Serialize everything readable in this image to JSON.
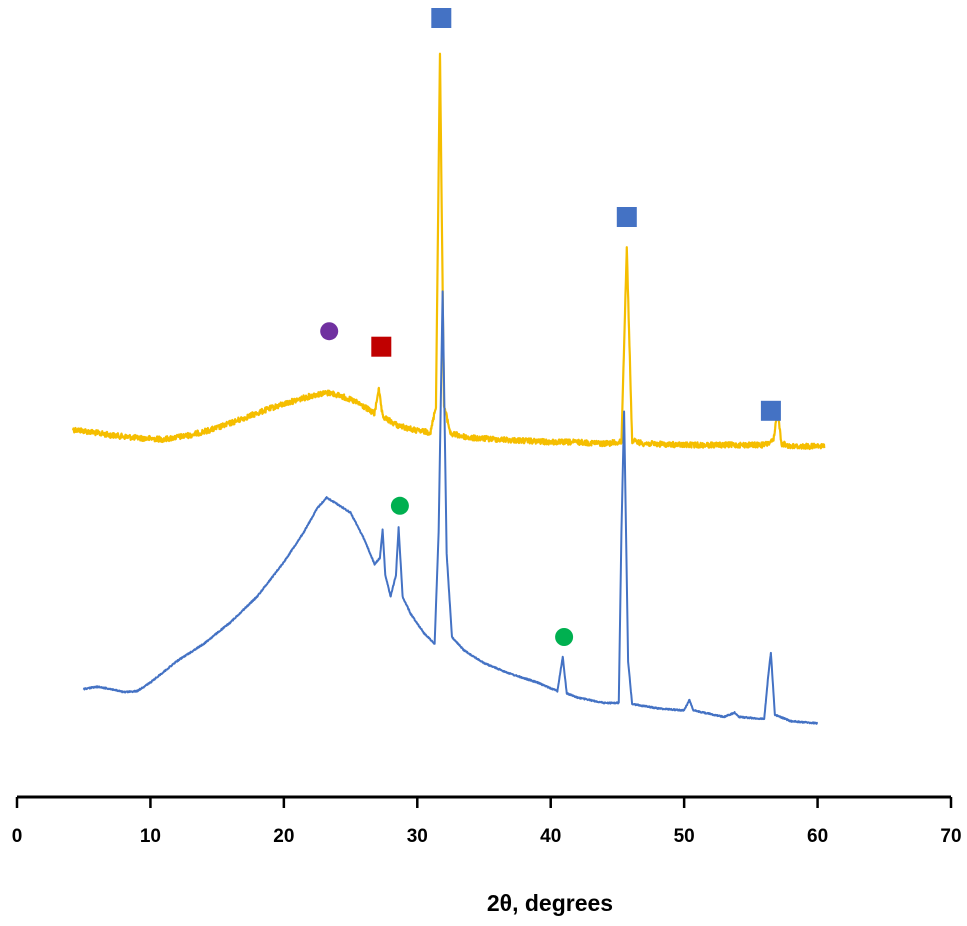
{
  "chart_data": {
    "type": "line",
    "title": "",
    "xlabel": "2θ, degrees",
    "ylabel": "",
    "xlim": [
      0,
      70
    ],
    "x_ticks": [
      "0",
      "10",
      "20",
      "30",
      "40",
      "50",
      "60",
      "70"
    ],
    "y_axis_visible": false,
    "grid": false,
    "legend": "none",
    "series": [
      {
        "color": "#F5BE00",
        "x_range": [
          4.2,
          60.5
        ],
        "baseline_offset": 0.0,
        "noise": "high",
        "points": [
          [
            4.2,
            3.3
          ],
          [
            5.0,
            3.2
          ],
          [
            7.0,
            2.9
          ],
          [
            9.0,
            2.7
          ],
          [
            11.0,
            2.6
          ],
          [
            13.0,
            2.9
          ],
          [
            15.0,
            3.4
          ],
          [
            17.0,
            4.1
          ],
          [
            19.0,
            4.8
          ],
          [
            21.0,
            5.4
          ],
          [
            22.5,
            5.8
          ],
          [
            23.5,
            5.9
          ],
          [
            24.5,
            5.6
          ],
          [
            25.5,
            5.2
          ],
          [
            26.2,
            4.8
          ],
          [
            26.8,
            4.4
          ],
          [
            27.1,
            6.2
          ],
          [
            27.4,
            4.2
          ],
          [
            28.5,
            3.6
          ],
          [
            30.0,
            3.2
          ],
          [
            31.0,
            3.1
          ],
          [
            31.4,
            5.0
          ],
          [
            31.7,
            30.0
          ],
          [
            32.0,
            5.0
          ],
          [
            32.5,
            3.0
          ],
          [
            34.0,
            2.7
          ],
          [
            36.0,
            2.6
          ],
          [
            38.0,
            2.5
          ],
          [
            40.0,
            2.4
          ],
          [
            42.0,
            2.4
          ],
          [
            44.0,
            2.3
          ],
          [
            45.3,
            2.4
          ],
          [
            45.7,
            16.2
          ],
          [
            46.1,
            2.5
          ],
          [
            47.0,
            2.3
          ],
          [
            50.0,
            2.2
          ],
          [
            53.0,
            2.2
          ],
          [
            56.0,
            2.2
          ],
          [
            56.7,
            2.5
          ],
          [
            57.0,
            4.6
          ],
          [
            57.3,
            2.3
          ],
          [
            58.0,
            2.1
          ],
          [
            60.5,
            2.1
          ]
        ]
      },
      {
        "color": "#4472C4",
        "x_range": [
          5.0,
          60.0
        ],
        "baseline_offset": 0.0,
        "noise": "low",
        "points": [
          [
            5.0,
            0.7
          ],
          [
            6.0,
            0.8
          ],
          [
            7.0,
            0.7
          ],
          [
            8.0,
            0.55
          ],
          [
            9.0,
            0.6
          ],
          [
            10.0,
            1.0
          ],
          [
            12.0,
            2.0
          ],
          [
            14.0,
            2.8
          ],
          [
            16.0,
            3.8
          ],
          [
            18.0,
            5.0
          ],
          [
            20.0,
            6.6
          ],
          [
            21.5,
            8.0
          ],
          [
            22.5,
            9.1
          ],
          [
            23.2,
            9.6
          ],
          [
            24.0,
            9.3
          ],
          [
            25.0,
            8.9
          ],
          [
            26.0,
            7.7
          ],
          [
            26.8,
            6.5
          ],
          [
            27.2,
            6.8
          ],
          [
            27.4,
            8.1
          ],
          [
            27.6,
            6.0
          ],
          [
            28.0,
            5.0
          ],
          [
            28.4,
            6.0
          ],
          [
            28.6,
            8.2
          ],
          [
            28.9,
            5.0
          ],
          [
            29.5,
            4.2
          ],
          [
            30.5,
            3.3
          ],
          [
            31.3,
            2.8
          ],
          [
            31.6,
            8.0
          ],
          [
            31.9,
            19.2
          ],
          [
            32.2,
            7.0
          ],
          [
            32.6,
            3.1
          ],
          [
            33.5,
            2.5
          ],
          [
            35.0,
            1.9
          ],
          [
            37.0,
            1.4
          ],
          [
            39.0,
            1.0
          ],
          [
            40.5,
            0.6
          ],
          [
            40.9,
            2.2
          ],
          [
            41.2,
            0.5
          ],
          [
            42.0,
            0.3
          ],
          [
            44.0,
            0.05
          ],
          [
            45.1,
            0.05
          ],
          [
            45.3,
            8.0
          ],
          [
            45.5,
            13.6
          ],
          [
            45.8,
            2.0
          ],
          [
            46.1,
            0.0
          ],
          [
            48.0,
            -0.2
          ],
          [
            50.0,
            -0.3
          ],
          [
            50.4,
            0.2
          ],
          [
            50.7,
            -0.3
          ],
          [
            53.0,
            -0.6
          ],
          [
            53.8,
            -0.4
          ],
          [
            54.1,
            -0.6
          ],
          [
            56.0,
            -0.7
          ],
          [
            56.3,
            1.3
          ],
          [
            56.5,
            2.4
          ],
          [
            56.8,
            -0.5
          ],
          [
            58.0,
            -0.8
          ],
          [
            60.0,
            -0.9
          ]
        ]
      }
    ],
    "annotations": [
      {
        "shape": "square",
        "color": "#4472C4",
        "x": 31.8,
        "level": 31.2
      },
      {
        "shape": "square",
        "color": "#4472C4",
        "x": 45.7,
        "level": 17.7
      },
      {
        "shape": "square",
        "color": "#4472C4",
        "x": 56.5,
        "level": 4.55
      },
      {
        "shape": "square",
        "color": "#C00000",
        "x": 27.3,
        "level": 8.9
      },
      {
        "shape": "circle",
        "color": "#7030A0",
        "x": 23.4,
        "level": 9.95
      },
      {
        "shape": "circle",
        "color": "#00B050",
        "x": 28.7,
        "level": -1.9
      },
      {
        "shape": "circle",
        "color": "#00B050",
        "x": 41.0,
        "level": -10.8
      }
    ]
  }
}
